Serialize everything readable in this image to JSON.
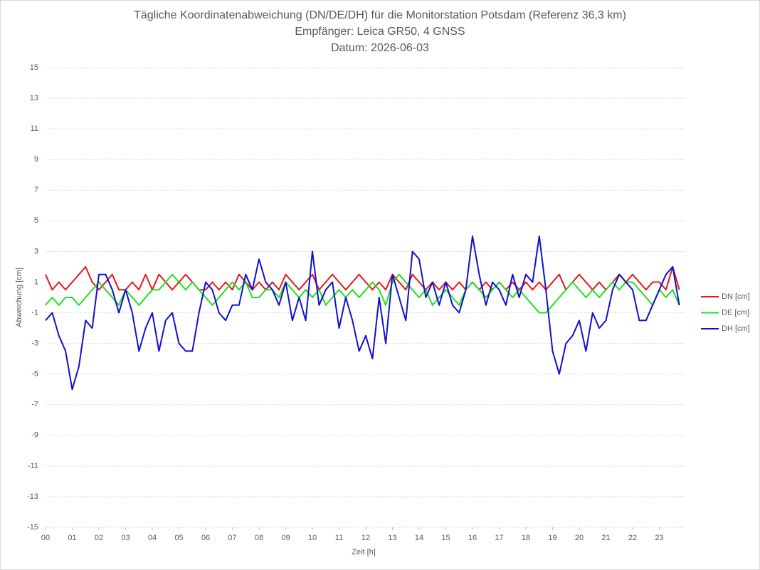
{
  "chart_data": {
    "type": "line",
    "title": "Tägliche Koordinatenabweichung (DN/DE/DH) für die Monitorstation Potsdam (Referenz 36,3 km)",
    "subtitle": "Empfänger: Leica GR50, 4 GNSS",
    "date_label": "Datum: 2026-06-03",
    "x_label": "Zeit [h]",
    "y_label": "Abweichung [cm]",
    "x": [
      0,
      0.25,
      0.5,
      0.75,
      1,
      1.25,
      1.5,
      1.75,
      2,
      2.25,
      2.5,
      2.75,
      3,
      3.25,
      3.5,
      3.75,
      4,
      4.25,
      4.5,
      4.75,
      5,
      5.25,
      5.5,
      5.75,
      6,
      6.25,
      6.5,
      6.75,
      7,
      7.25,
      7.5,
      7.75,
      8,
      8.25,
      8.5,
      8.75,
      9,
      9.25,
      9.5,
      9.75,
      10,
      10.25,
      10.5,
      10.75,
      11,
      11.25,
      11.5,
      11.75,
      12,
      12.25,
      12.5,
      12.75,
      13,
      13.25,
      13.5,
      13.75,
      14,
      14.25,
      14.5,
      14.75,
      15,
      15.25,
      15.5,
      15.75,
      16,
      16.25,
      16.5,
      16.75,
      17,
      17.25,
      17.5,
      17.75,
      18,
      18.25,
      18.5,
      18.75,
      19,
      19.25,
      19.5,
      19.75,
      20,
      20.25,
      20.5,
      20.75,
      21,
      21.25,
      21.5,
      21.75,
      22,
      22.25,
      22.5,
      22.75,
      23,
      23.25,
      23.5,
      23.75
    ],
    "series": [
      {
        "name": "DN [cm]",
        "color": "#e31a1c",
        "values": [
          1.5,
          0.5,
          1,
          0.5,
          1,
          1.5,
          2,
          1,
          0.5,
          1,
          1.5,
          0.5,
          0.5,
          1,
          0.5,
          1.5,
          0.5,
          1.5,
          1,
          0.5,
          1,
          1.5,
          1,
          0.5,
          0.5,
          1,
          0.5,
          1,
          0.5,
          1.5,
          1,
          0.5,
          1,
          0.5,
          1,
          0.5,
          1.5,
          1,
          0.5,
          1,
          1.5,
          0.5,
          1,
          1.5,
          1,
          0.5,
          1,
          1.5,
          1,
          0.5,
          1,
          0.5,
          1.5,
          1,
          0.5,
          1.5,
          1,
          0.5,
          1,
          0.5,
          1,
          0.5,
          1,
          0.5,
          1,
          0.5,
          1,
          0.5,
          1,
          0.5,
          1,
          0.5,
          1,
          0.5,
          1,
          0.5,
          1,
          1.5,
          0.5,
          1,
          1.5,
          1,
          0.5,
          1,
          0.5,
          1,
          1.5,
          1,
          1.5,
          1,
          0.5,
          1,
          1,
          0.5,
          2,
          0.5
        ]
      },
      {
        "name": "DE [cm]",
        "color": "#22e022",
        "values": [
          -0.5,
          0,
          -0.5,
          0,
          0,
          -0.5,
          0,
          0.5,
          1,
          0.5,
          0,
          -0.5,
          0.5,
          0,
          -0.5,
          0,
          0.5,
          0.5,
          1,
          1.5,
          1,
          0.5,
          1,
          0.5,
          0,
          -0.5,
          0,
          0.5,
          1,
          0.5,
          1,
          0,
          0,
          0.5,
          0.5,
          0,
          1,
          0.5,
          0,
          0.5,
          0,
          0.5,
          -0.5,
          0,
          0.5,
          0,
          0.5,
          0,
          0.5,
          1,
          0.5,
          -0.5,
          1,
          1.5,
          1,
          0.5,
          0,
          0.5,
          -0.5,
          0,
          0.5,
          0,
          -0.5,
          0.5,
          1,
          0.5,
          0,
          0.5,
          1,
          0.5,
          0,
          0.5,
          0,
          -0.5,
          -1,
          -1,
          -0.5,
          0,
          0.5,
          1,
          0.5,
          0,
          0.5,
          0,
          0.5,
          1,
          0.5,
          1,
          1,
          0.5,
          0,
          -0.5,
          0.5,
          0,
          0.5,
          -0.5
        ]
      },
      {
        "name": "DH [cm]",
        "color": "#1010d0",
        "values": [
          -1.5,
          -1,
          -2.5,
          -3.5,
          -6,
          -4.5,
          -1.5,
          -2,
          1.5,
          1.5,
          0.5,
          -1,
          0.5,
          -1,
          -3.5,
          -2,
          -1,
          -3.5,
          -1.5,
          -1,
          -3,
          -3.5,
          -3.5,
          -1,
          1,
          0.5,
          -1,
          -1.5,
          -0.5,
          -0.5,
          1.5,
          0.5,
          2.5,
          1,
          0.5,
          -0.5,
          1,
          -1.5,
          0,
          -1.5,
          3,
          -0.5,
          0.5,
          1,
          -2,
          0,
          -1.5,
          -3.5,
          -2.5,
          -4,
          0,
          -3,
          1.5,
          0,
          -1.5,
          3,
          2.5,
          0,
          1,
          -0.5,
          1,
          -0.5,
          -1,
          0.5,
          4,
          1.5,
          -0.5,
          1,
          0.5,
          -0.5,
          1.5,
          0,
          1.5,
          1,
          4,
          0.5,
          -3.5,
          -5,
          -3,
          -2.5,
          -1.5,
          -3.5,
          -1,
          -2,
          -1.5,
          0.5,
          1.5,
          1,
          0.5,
          -1.5,
          -1.5,
          -0.5,
          0.5,
          1.5,
          2,
          -0.5
        ]
      }
    ],
    "xlim": [
      0,
      24
    ],
    "xticks": [
      {
        "value": 0,
        "label": "00"
      },
      {
        "value": 1,
        "label": "01"
      },
      {
        "value": 2,
        "label": "02"
      },
      {
        "value": 3,
        "label": "03"
      },
      {
        "value": 4,
        "label": "04"
      },
      {
        "value": 5,
        "label": "05"
      },
      {
        "value": 6,
        "label": "06"
      },
      {
        "value": 7,
        "label": "07"
      },
      {
        "value": 8,
        "label": "08"
      },
      {
        "value": 9,
        "label": "09"
      },
      10,
      11,
      12,
      13,
      14,
      15,
      16,
      17,
      18,
      19,
      20,
      21,
      22,
      23
    ],
    "ylim": [
      -15,
      15
    ],
    "yticks": [
      -15,
      -13,
      -11,
      -9,
      -7,
      -5,
      -3,
      -1,
      1,
      3,
      5,
      7,
      9,
      11,
      13,
      15
    ],
    "grid": true,
    "legend": "right"
  }
}
